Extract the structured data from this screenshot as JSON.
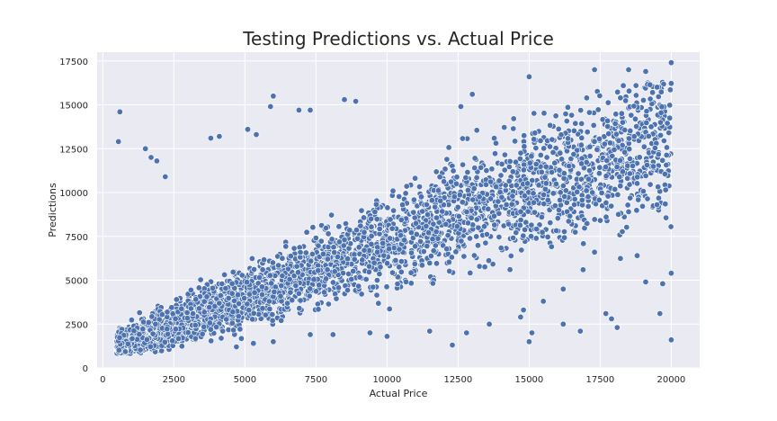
{
  "chart_data": {
    "type": "scatter",
    "title": "Testing Predictions vs. Actual Price",
    "xlabel": "Actual Price",
    "ylabel": "Predictions",
    "xlim": [
      -200,
      21000
    ],
    "ylim": [
      0,
      18000
    ],
    "xticks": [
      0,
      2500,
      5000,
      7500,
      10000,
      12500,
      15000,
      17500,
      20000
    ],
    "yticks": [
      0,
      2500,
      5000,
      7500,
      10000,
      12500,
      15000,
      17500
    ],
    "xtick_labels": [
      "0",
      "2500",
      "5000",
      "7500",
      "10000",
      "12500",
      "15000",
      "17500",
      "20000"
    ],
    "ytick_labels": [
      "0",
      "2500",
      "5000",
      "7500",
      "10000",
      "12500",
      "15000",
      "17500"
    ],
    "grid": true,
    "colors": {
      "background": "#eaeaf2",
      "grid": "#ffffff",
      "point": "#4c72b0",
      "point_edge": "#ffffff"
    },
    "series": [
      {
        "points": [
          [
            600,
            14600
          ],
          [
            550,
            12900
          ],
          [
            1500,
            12500
          ],
          [
            1700,
            12000
          ],
          [
            1900,
            11800
          ],
          [
            2200,
            10900
          ],
          [
            3800,
            13100
          ],
          [
            4100,
            13200
          ],
          [
            5100,
            13600
          ],
          [
            5400,
            13300
          ],
          [
            6000,
            15500
          ],
          [
            5900,
            14900
          ],
          [
            6900,
            14700
          ],
          [
            7300,
            14700
          ],
          [
            8500,
            15300
          ],
          [
            8900,
            15200
          ],
          [
            12600,
            14900
          ],
          [
            13000,
            15600
          ],
          [
            15000,
            16600
          ],
          [
            17300,
            17000
          ],
          [
            18500,
            17000
          ],
          [
            19100,
            16900
          ],
          [
            20000,
            17400
          ],
          [
            20000,
            1600
          ],
          [
            19600,
            3100
          ],
          [
            17700,
            3100
          ],
          [
            16800,
            2100
          ],
          [
            15000,
            1500
          ],
          [
            15100,
            2000
          ],
          [
            14700,
            2900
          ],
          [
            12300,
            1300
          ],
          [
            12800,
            2000
          ],
          [
            13600,
            2500
          ],
          [
            11500,
            2100
          ],
          [
            10000,
            1800
          ],
          [
            9400,
            2000
          ],
          [
            8100,
            1900
          ],
          [
            7300,
            1900
          ],
          [
            6000,
            1500
          ],
          [
            5300,
            1400
          ],
          [
            4700,
            1200
          ],
          [
            18100,
            2300
          ],
          [
            17900,
            2800
          ],
          [
            16200,
            2500
          ],
          [
            19100,
            4900
          ],
          [
            19700,
            4800
          ],
          [
            20000,
            5400
          ],
          [
            18800,
            6400
          ],
          [
            17300,
            6600
          ],
          [
            16900,
            5600
          ],
          [
            18500,
            8900
          ],
          [
            19500,
            9300
          ],
          [
            16200,
            4500
          ],
          [
            15500,
            3800
          ],
          [
            14800,
            3300
          ]
        ]
      }
    ]
  }
}
